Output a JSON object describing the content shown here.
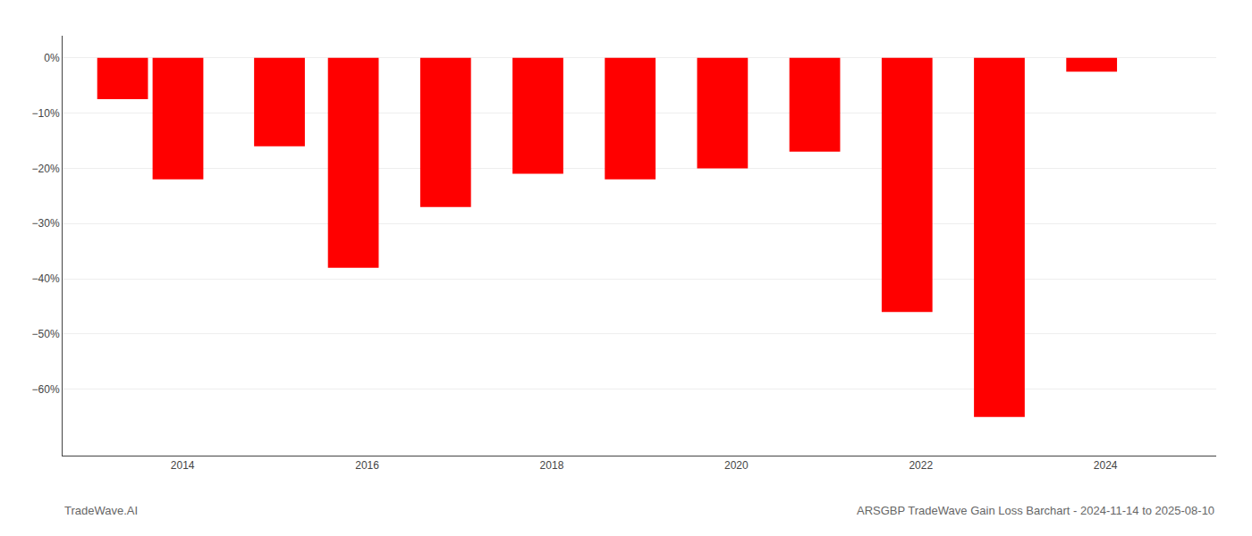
{
  "chart_data": {
    "type": "bar",
    "x": [
      2013.35,
      2013.95,
      2015.05,
      2015.85,
      2016.85,
      2017.85,
      2018.85,
      2019.85,
      2020.85,
      2021.85,
      2022.85,
      2023.85
    ],
    "values": [
      -7.5,
      -22.0,
      -16.0,
      -38.0,
      -27.0,
      -21.0,
      -22.0,
      -20.0,
      -17.0,
      -46.0,
      -65.0,
      -2.5
    ],
    "color": "#ff0000",
    "xlim": [
      2012.7,
      2025.2
    ],
    "xticks": [
      2014,
      2016,
      2018,
      2020,
      2022,
      2024
    ],
    "ylim": [
      -72,
      4
    ],
    "yticks": [
      {
        "value": 0,
        "label": "0%"
      },
      {
        "value": -10,
        "label": "−10%"
      },
      {
        "value": -20,
        "label": "−20%"
      },
      {
        "value": -30,
        "label": "−30%"
      },
      {
        "value": -40,
        "label": "−40%"
      },
      {
        "value": -50,
        "label": "−50%"
      },
      {
        "value": -60,
        "label": "−60%"
      }
    ],
    "grid": true,
    "annotations": [
      "TradeWave.AI",
      "ARSGBP TradeWave Gain Loss Barchart - 2024-11-14 to 2025-08-10"
    ]
  }
}
